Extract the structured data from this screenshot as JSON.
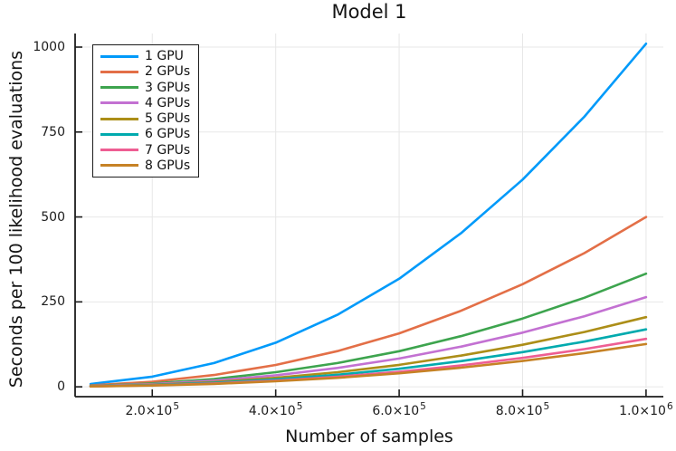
{
  "window": {
    "background": "#FFFFFF"
  },
  "chart_data": {
    "type": "line",
    "title": "Model 1",
    "xlabel": "Number of samples",
    "ylabel": "Seconds per 100 likelihood evaluations",
    "grid": true,
    "legend_position": "top-left",
    "grid_color": "#E7E7E7",
    "axis_color": "#1C1C1C",
    "text_color": "#141414",
    "xlim": [
      75000,
      1028000
    ],
    "ylim": [
      -29,
      1040
    ],
    "x": [
      100000,
      200000,
      300000,
      400000,
      500000,
      600000,
      700000,
      800000,
      900000,
      1000000
    ],
    "series": [
      {
        "name": "1 GPU",
        "color": "#009AFA",
        "values": [
          8,
          30,
          70,
          130,
          212,
          318,
          452,
          610,
          795,
          1010
        ]
      },
      {
        "name": "2 GPUs",
        "color": "#E36F47",
        "values": [
          4,
          14.9,
          34.7,
          64.4,
          105,
          157.4,
          223.8,
          302,
          393.6,
          500
        ]
      },
      {
        "name": "3 GPUs",
        "color": "#3DA44E",
        "values": [
          2.6,
          9.9,
          23.1,
          42.9,
          69.9,
          104.8,
          149,
          201.1,
          262.1,
          333
        ]
      },
      {
        "name": "4 GPUs",
        "color": "#C371D2",
        "values": [
          2.1,
          7.8,
          18.3,
          34,
          55.4,
          83.1,
          118.1,
          159.4,
          207.8,
          264
        ]
      },
      {
        "name": "5 GPUs",
        "color": "#AC8E18",
        "values": [
          1.6,
          6.1,
          14.2,
          26.4,
          43,
          64.5,
          91.7,
          123.8,
          161.4,
          205
        ]
      },
      {
        "name": "6 GPUs",
        "color": "#00AAAE",
        "values": [
          1.3,
          5,
          11.7,
          21.8,
          35.5,
          53.2,
          75.6,
          102.1,
          133,
          169
        ]
      },
      {
        "name": "7 GPUs",
        "color": "#EE5E93",
        "values": [
          1.1,
          4.2,
          9.8,
          18.1,
          29.6,
          44.4,
          63.1,
          85.2,
          111,
          141
        ]
      },
      {
        "name": "8 GPUs",
        "color": "#C68225",
        "values": [
          1,
          3.7,
          8.7,
          16.2,
          26.5,
          39.7,
          56.4,
          76.1,
          99.2,
          126
        ]
      }
    ],
    "x_ticks": {
      "values": [
        200000,
        400000,
        600000,
        800000,
        1000000
      ],
      "labels": [
        {
          "base": "2.0×10",
          "exp": "5"
        },
        {
          "base": "4.0×10",
          "exp": "5"
        },
        {
          "base": "6.0×10",
          "exp": "5"
        },
        {
          "base": "8.0×10",
          "exp": "5"
        },
        {
          "base": "1.0×10",
          "exp": "6"
        }
      ]
    },
    "y_ticks": {
      "values": [
        0,
        250,
        500,
        750,
        1000
      ],
      "labels": [
        "0",
        "250",
        "500",
        "750",
        "1000"
      ]
    }
  }
}
